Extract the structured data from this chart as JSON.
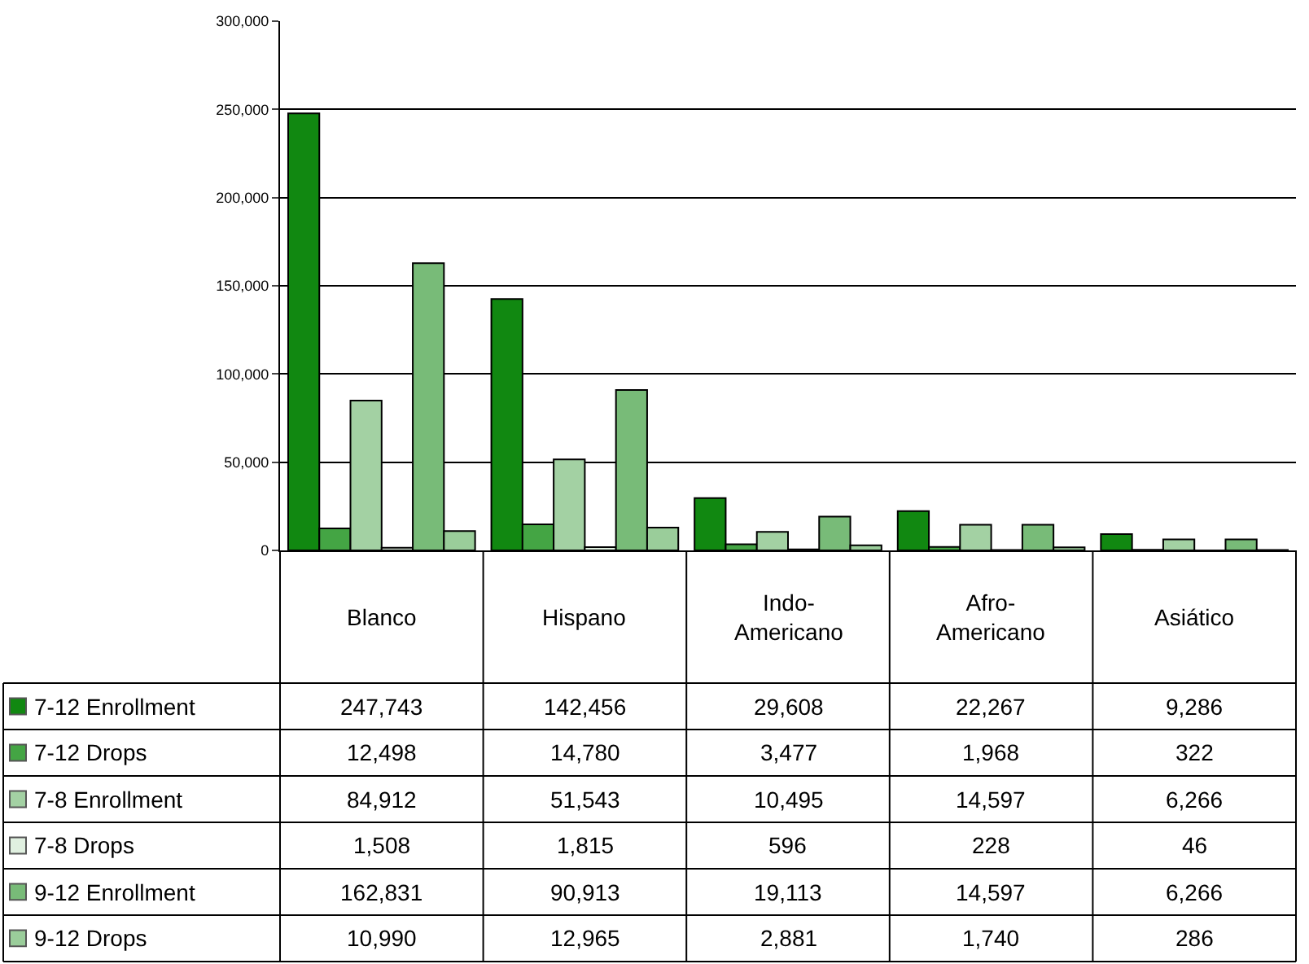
{
  "chart_data": {
    "type": "bar",
    "categories": [
      "Blanco",
      "Hispano",
      "Indo-\nAmericano",
      "Afro-\nAmericano",
      "Asiático"
    ],
    "series": [
      {
        "name": "7-12 Enrollment",
        "color": "#118811",
        "values": [
          247743,
          142456,
          29608,
          22267,
          9286
        ],
        "value_labels": [
          "247,743",
          "142,456",
          "29,608",
          "22,267",
          "9,286"
        ]
      },
      {
        "name": "7-12 Drops",
        "color": "#44a544",
        "values": [
          12498,
          14780,
          3477,
          1968,
          322
        ],
        "value_labels": [
          "12,498",
          "14,780",
          "3,477",
          "1,968",
          "322"
        ]
      },
      {
        "name": "7-8 Enrollment",
        "color": "#a3d1a3",
        "values": [
          84912,
          51543,
          10495,
          14597,
          6266
        ],
        "value_labels": [
          "84,912",
          "51,543",
          "10,495",
          "14,597",
          "6,266"
        ]
      },
      {
        "name": "7-8 Drops",
        "color": "#e0f0e0",
        "values": [
          1508,
          1815,
          596,
          228,
          46
        ],
        "value_labels": [
          "1,508",
          "1,815",
          "596",
          "228",
          "46"
        ]
      },
      {
        "name": "9-12 Enrollment",
        "color": "#78bb78",
        "values": [
          162831,
          90913,
          19113,
          14597,
          6266
        ],
        "value_labels": [
          "162,831",
          "90,913",
          "19,113",
          "14,597",
          "6,266"
        ]
      },
      {
        "name": "9-12 Drops",
        "color": "#9acd9a",
        "values": [
          10990,
          12965,
          2881,
          1740,
          286
        ],
        "value_labels": [
          "10,990",
          "12,965",
          "2,881",
          "1,740",
          "286"
        ]
      }
    ],
    "ylim": [
      0,
      300000
    ],
    "yticks": [
      {
        "value": 0,
        "label": "0"
      },
      {
        "value": 50000,
        "label": "50,000"
      },
      {
        "value": 100000,
        "label": "100,000"
      },
      {
        "value": 150000,
        "label": "150,000"
      },
      {
        "value": 200000,
        "label": "200,000"
      },
      {
        "value": 250000,
        "label": "250,000"
      },
      {
        "value": 300000,
        "label": "300,000"
      }
    ],
    "grid": "y",
    "legend": "bottom left"
  }
}
